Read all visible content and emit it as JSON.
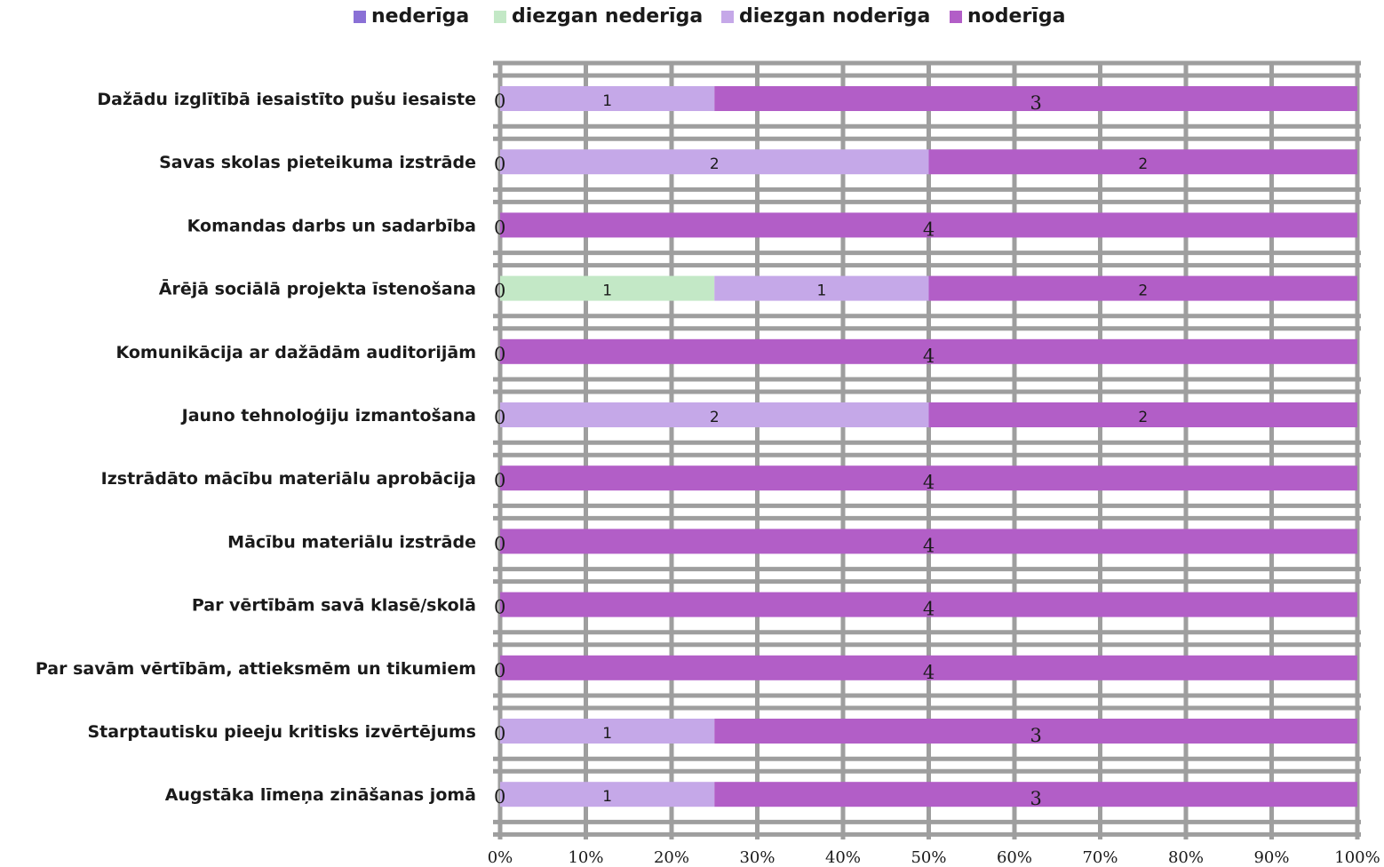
{
  "chart_data": {
    "type": "bar",
    "orientation": "horizontal",
    "stacked": "percent",
    "title": "",
    "xlabel": "",
    "ylabel": "",
    "xlim": [
      0,
      100
    ],
    "x_ticks": [
      "0%",
      "10%",
      "20%",
      "30%",
      "40%",
      "50%",
      "60%",
      "70%",
      "80%",
      "90%",
      "100%"
    ],
    "grid": true,
    "legend_position": "top",
    "categories": [
      "Dažādu izglītībā iesaistīto pušu iesaiste",
      "Savas skolas pieteikuma izstrāde",
      "Komandas darbs un sadarbība",
      "Ārējā sociālā projekta īstenošana",
      "Komunikācija ar dažādām auditorijām",
      "Jauno tehnoloģiju izmantošana",
      "Izstrādāto mācību materiālu aprobācija",
      "Mācību materiālu izstrāde",
      "Par vērtībām savā klasē/skolā",
      "Par savām vērtībām, attieksmēm un tikumiem",
      "Starptautisku pieeju kritisks izvērtējums",
      "Augstāka līmeņa zināšanas jomā"
    ],
    "series": [
      {
        "name": "nederīga",
        "color": "#8a70d6",
        "values": [
          0,
          0,
          0,
          0,
          0,
          0,
          0,
          0,
          0,
          0,
          0,
          0
        ]
      },
      {
        "name": "diezgan nederīga",
        "color": "#c3e8c6",
        "values": [
          0,
          0,
          0,
          1,
          0,
          0,
          0,
          0,
          0,
          0,
          0,
          0
        ]
      },
      {
        "name": "diezgan noderīga",
        "color": "#c5a8e8",
        "values": [
          1,
          2,
          0,
          1,
          0,
          2,
          0,
          0,
          0,
          0,
          1,
          1
        ]
      },
      {
        "name": "noderīga",
        "color": "#b25ec7",
        "values": [
          3,
          2,
          4,
          2,
          4,
          2,
          4,
          4,
          4,
          4,
          3,
          3
        ]
      }
    ]
  }
}
